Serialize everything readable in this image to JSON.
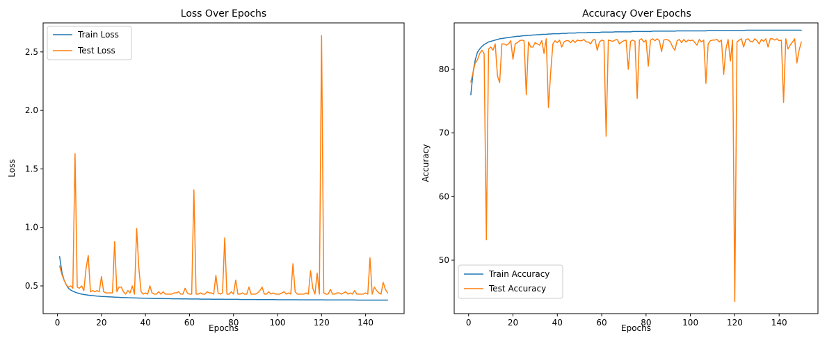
{
  "chart_data": [
    {
      "type": "line",
      "title": "Loss Over Epochs",
      "xlabel": "Epochs",
      "ylabel": "Loss",
      "xlim": [
        -6.5,
        157.5
      ],
      "ylim": [
        0.263,
        2.748
      ],
      "xticks": [
        0,
        20,
        40,
        60,
        80,
        100,
        120,
        140
      ],
      "yticks": [
        0.5,
        1.0,
        1.5,
        2.0,
        2.5
      ],
      "ytick_labels": [
        "0.5",
        "1.0",
        "1.5",
        "2.0",
        "2.5"
      ],
      "grid": false,
      "legend": "upper left",
      "x": [
        1,
        2,
        3,
        4,
        5,
        6,
        7,
        8,
        9,
        10,
        11,
        12,
        13,
        14,
        15,
        16,
        17,
        18,
        19,
        20,
        21,
        22,
        23,
        24,
        25,
        26,
        27,
        28,
        29,
        30,
        31,
        32,
        33,
        34,
        35,
        36,
        37,
        38,
        39,
        40,
        41,
        42,
        43,
        44,
        45,
        46,
        47,
        48,
        49,
        50,
        51,
        52,
        53,
        54,
        55,
        56,
        57,
        58,
        59,
        60,
        61,
        62,
        63,
        64,
        65,
        66,
        67,
        68,
        69,
        70,
        71,
        72,
        73,
        74,
        75,
        76,
        77,
        78,
        79,
        80,
        81,
        82,
        83,
        84,
        85,
        86,
        87,
        88,
        89,
        90,
        91,
        92,
        93,
        94,
        95,
        96,
        97,
        98,
        99,
        100,
        101,
        102,
        103,
        104,
        105,
        106,
        107,
        108,
        109,
        110,
        111,
        112,
        113,
        114,
        115,
        116,
        117,
        118,
        119,
        120,
        121,
        122,
        123,
        124,
        125,
        126,
        127,
        128,
        129,
        130,
        131,
        132,
        133,
        134,
        135,
        136,
        137,
        138,
        139,
        140,
        141,
        142,
        143,
        144,
        145,
        146,
        147,
        148,
        149,
        150
      ],
      "series": [
        {
          "name": "Train Loss",
          "color": "#1f77b4",
          "values": [
            0.75,
            0.62,
            0.55,
            0.51,
            0.48,
            0.465,
            0.455,
            0.447,
            0.44,
            0.435,
            0.43,
            0.427,
            0.424,
            0.421,
            0.419,
            0.417,
            0.415,
            0.413,
            0.412,
            0.41,
            0.409,
            0.408,
            0.407,
            0.406,
            0.405,
            0.404,
            0.403,
            0.402,
            0.401,
            0.4,
            0.4,
            0.399,
            0.398,
            0.398,
            0.397,
            0.397,
            0.396,
            0.396,
            0.395,
            0.395,
            0.394,
            0.394,
            0.393,
            0.393,
            0.393,
            0.392,
            0.392,
            0.392,
            0.391,
            0.391,
            0.391,
            0.39,
            0.39,
            0.39,
            0.39,
            0.389,
            0.389,
            0.389,
            0.389,
            0.388,
            0.388,
            0.388,
            0.388,
            0.388,
            0.387,
            0.387,
            0.387,
            0.387,
            0.387,
            0.386,
            0.386,
            0.386,
            0.386,
            0.386,
            0.386,
            0.385,
            0.385,
            0.385,
            0.385,
            0.385,
            0.385,
            0.385,
            0.384,
            0.384,
            0.384,
            0.384,
            0.384,
            0.384,
            0.384,
            0.384,
            0.383,
            0.383,
            0.383,
            0.383,
            0.383,
            0.383,
            0.383,
            0.383,
            0.383,
            0.382,
            0.382,
            0.382,
            0.382,
            0.382,
            0.382,
            0.382,
            0.382,
            0.382,
            0.382,
            0.381,
            0.381,
            0.381,
            0.381,
            0.381,
            0.381,
            0.381,
            0.381,
            0.381,
            0.381,
            0.381,
            0.381,
            0.38,
            0.38,
            0.38,
            0.38,
            0.38,
            0.38,
            0.38,
            0.38,
            0.38,
            0.38,
            0.38,
            0.38,
            0.38,
            0.38,
            0.379,
            0.379,
            0.379,
            0.379,
            0.379,
            0.379,
            0.379,
            0.379,
            0.379,
            0.379,
            0.379,
            0.379,
            0.379,
            0.379,
            0.379
          ]
        },
        {
          "name": "Test Loss",
          "color": "#ff7f0e",
          "values": [
            0.67,
            0.6,
            0.55,
            0.51,
            0.49,
            0.5,
            0.48,
            1.63,
            0.49,
            0.48,
            0.5,
            0.46,
            0.65,
            0.76,
            0.45,
            0.46,
            0.45,
            0.46,
            0.45,
            0.58,
            0.45,
            0.44,
            0.44,
            0.44,
            0.44,
            0.88,
            0.45,
            0.49,
            0.49,
            0.45,
            0.43,
            0.46,
            0.44,
            0.5,
            0.43,
            0.99,
            0.65,
            0.45,
            0.43,
            0.44,
            0.43,
            0.5,
            0.44,
            0.43,
            0.43,
            0.45,
            0.43,
            0.45,
            0.43,
            0.43,
            0.43,
            0.43,
            0.44,
            0.44,
            0.45,
            0.43,
            0.43,
            0.48,
            0.44,
            0.43,
            0.43,
            1.32,
            0.43,
            0.43,
            0.44,
            0.43,
            0.43,
            0.45,
            0.44,
            0.44,
            0.43,
            0.59,
            0.44,
            0.43,
            0.44,
            0.91,
            0.43,
            0.43,
            0.45,
            0.43,
            0.55,
            0.43,
            0.43,
            0.44,
            0.43,
            0.43,
            0.49,
            0.43,
            0.43,
            0.43,
            0.44,
            0.46,
            0.49,
            0.43,
            0.43,
            0.45,
            0.43,
            0.44,
            0.43,
            0.43,
            0.43,
            0.44,
            0.45,
            0.43,
            0.44,
            0.43,
            0.69,
            0.45,
            0.43,
            0.43,
            0.43,
            0.43,
            0.44,
            0.43,
            0.63,
            0.48,
            0.43,
            0.61,
            0.43,
            2.64,
            0.44,
            0.43,
            0.43,
            0.47,
            0.43,
            0.43,
            0.44,
            0.44,
            0.43,
            0.44,
            0.45,
            0.43,
            0.44,
            0.43,
            0.46,
            0.43,
            0.43,
            0.43,
            0.43,
            0.44,
            0.43,
            0.74,
            0.43,
            0.49,
            0.46,
            0.44,
            0.43,
            0.53,
            0.47,
            0.44
          ]
        }
      ]
    },
    {
      "type": "line",
      "title": "Accuracy Over Epochs",
      "xlabel": "Epochs",
      "ylabel": "Accuracy",
      "xlim": [
        -6.5,
        157.5
      ],
      "ylim": [
        41.6,
        87.3
      ],
      "xticks": [
        0,
        20,
        40,
        60,
        80,
        100,
        120,
        140
      ],
      "yticks": [
        50,
        60,
        70,
        80
      ],
      "ytick_labels": [
        "50",
        "60",
        "70",
        "80"
      ],
      "grid": false,
      "legend": "lower left",
      "x": [
        1,
        2,
        3,
        4,
        5,
        6,
        7,
        8,
        9,
        10,
        11,
        12,
        13,
        14,
        15,
        16,
        17,
        18,
        19,
        20,
        21,
        22,
        23,
        24,
        25,
        26,
        27,
        28,
        29,
        30,
        31,
        32,
        33,
        34,
        35,
        36,
        37,
        38,
        39,
        40,
        41,
        42,
        43,
        44,
        45,
        46,
        47,
        48,
        49,
        50,
        51,
        52,
        53,
        54,
        55,
        56,
        57,
        58,
        59,
        60,
        61,
        62,
        63,
        64,
        65,
        66,
        67,
        68,
        69,
        70,
        71,
        72,
        73,
        74,
        75,
        76,
        77,
        78,
        79,
        80,
        81,
        82,
        83,
        84,
        85,
        86,
        87,
        88,
        89,
        90,
        91,
        92,
        93,
        94,
        95,
        96,
        97,
        98,
        99,
        100,
        101,
        102,
        103,
        104,
        105,
        106,
        107,
        108,
        109,
        110,
        111,
        112,
        113,
        114,
        115,
        116,
        117,
        118,
        119,
        120,
        121,
        122,
        123,
        124,
        125,
        126,
        127,
        128,
        129,
        130,
        131,
        132,
        133,
        134,
        135,
        136,
        137,
        138,
        139,
        140,
        141,
        142,
        143,
        144,
        145,
        146,
        147,
        148,
        149,
        150
      ],
      "series": [
        {
          "name": "Train Accuracy",
          "color": "#1f77b4",
          "values": [
            76.0,
            79.5,
            81.5,
            82.7,
            83.2,
            83.6,
            83.9,
            84.1,
            84.3,
            84.4,
            84.5,
            84.6,
            84.7,
            84.8,
            84.85,
            84.9,
            84.95,
            85.0,
            85.05,
            85.1,
            85.15,
            85.2,
            85.2,
            85.25,
            85.3,
            85.3,
            85.35,
            85.35,
            85.4,
            85.4,
            85.45,
            85.45,
            85.5,
            85.5,
            85.5,
            85.55,
            85.55,
            85.6,
            85.6,
            85.6,
            85.6,
            85.65,
            85.65,
            85.65,
            85.7,
            85.7,
            85.7,
            85.7,
            85.75,
            85.75,
            85.75,
            85.75,
            85.75,
            85.8,
            85.8,
            85.8,
            85.8,
            85.8,
            85.8,
            85.85,
            85.85,
            85.85,
            85.85,
            85.85,
            85.85,
            85.9,
            85.9,
            85.9,
            85.9,
            85.9,
            85.9,
            85.9,
            85.9,
            85.95,
            85.95,
            85.95,
            85.95,
            85.95,
            85.95,
            85.95,
            85.95,
            85.95,
            86.0,
            86.0,
            86.0,
            86.0,
            86.0,
            86.0,
            86.0,
            86.0,
            86.0,
            86.0,
            86.0,
            86.05,
            86.05,
            86.05,
            86.05,
            86.05,
            86.05,
            86.05,
            86.05,
            86.05,
            86.05,
            86.05,
            86.05,
            86.05,
            86.05,
            86.1,
            86.1,
            86.1,
            86.1,
            86.1,
            86.1,
            86.1,
            86.1,
            86.1,
            86.1,
            86.1,
            86.1,
            86.1,
            86.1,
            86.1,
            86.1,
            86.1,
            86.15,
            86.15,
            86.15,
            86.15,
            86.15,
            86.15,
            86.15,
            86.15,
            86.15,
            86.15,
            86.15,
            86.15,
            86.15,
            86.15,
            86.15,
            86.15,
            86.15,
            86.15,
            86.15,
            86.15,
            86.15,
            86.15,
            86.15,
            86.15,
            86.15,
            86.15
          ]
        },
        {
          "name": "Test Accuracy",
          "color": "#ff7f0e",
          "values": [
            78.0,
            79.5,
            81.0,
            81.5,
            82.5,
            83.0,
            82.5,
            53.2,
            83.2,
            83.5,
            83.0,
            84.0,
            79.0,
            77.9,
            84.0,
            84.0,
            83.8,
            84.0,
            84.5,
            81.6,
            84.0,
            84.2,
            84.5,
            84.6,
            84.5,
            76.0,
            84.3,
            83.5,
            83.5,
            84.2,
            84.0,
            83.8,
            84.5,
            82.5,
            84.8,
            74.0,
            79.5,
            84.0,
            84.5,
            84.2,
            84.6,
            83.5,
            84.3,
            84.5,
            84.5,
            84.2,
            84.6,
            84.2,
            84.6,
            84.5,
            84.5,
            84.7,
            84.3,
            84.3,
            84.0,
            84.6,
            84.7,
            83.0,
            84.3,
            84.6,
            84.5,
            69.5,
            84.6,
            84.5,
            84.4,
            84.6,
            84.7,
            84.0,
            84.3,
            84.5,
            84.6,
            80.0,
            84.4,
            84.6,
            84.4,
            75.4,
            84.6,
            84.8,
            84.3,
            84.6,
            80.5,
            84.6,
            84.8,
            84.5,
            84.8,
            84.5,
            82.8,
            84.6,
            84.7,
            84.6,
            84.3,
            83.5,
            83.0,
            84.5,
            84.7,
            84.2,
            84.7,
            84.3,
            84.6,
            84.5,
            84.6,
            84.2,
            83.8,
            84.7,
            84.3,
            84.6,
            77.8,
            84.0,
            84.5,
            84.6,
            84.6,
            84.7,
            84.3,
            84.6,
            79.2,
            83.2,
            84.7,
            81.3,
            84.6,
            43.5,
            84.3,
            84.6,
            84.8,
            83.5,
            84.7,
            84.8,
            84.4,
            84.3,
            84.8,
            84.5,
            84.0,
            84.7,
            84.4,
            84.8,
            83.5,
            84.8,
            84.8,
            84.6,
            84.8,
            84.5,
            84.6,
            74.8,
            84.8,
            83.2,
            83.8,
            84.3,
            84.8,
            81.0,
            83.0,
            84.3
          ]
        }
      ]
    }
  ]
}
